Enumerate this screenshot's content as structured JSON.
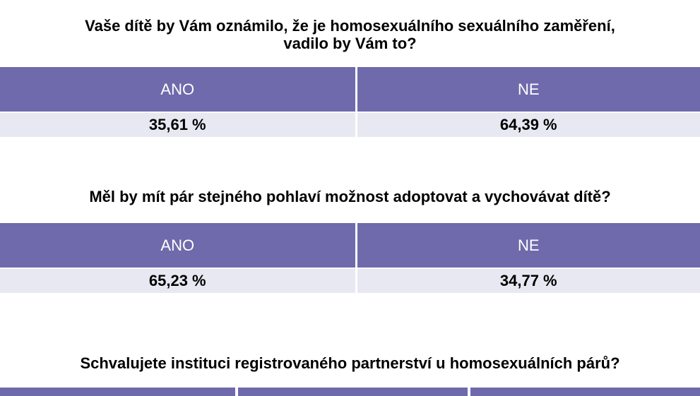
{
  "questions": [
    {
      "title_line1": "Vaše dítě by Vám oznámilo, že je homosexuálního sexuálního zaměření,",
      "title_line2": "vadilo by Vám to?",
      "answers": [
        {
          "label": "ANO",
          "value": "35,61 %"
        },
        {
          "label": "NE",
          "value": "64,39 %"
        }
      ]
    },
    {
      "title": "Měl by mít pár stejného pohlaví možnost adoptovat a vychovávat dítě?",
      "answers": [
        {
          "label": "ANO",
          "value": "65,23 %"
        },
        {
          "label": "NE",
          "value": "34,77 %"
        }
      ]
    },
    {
      "title": "Schvalujete instituci registrovaného partnerství u homosexuálních párů?"
    }
  ],
  "colors": {
    "header_bg": "#6f6aab",
    "header_text": "#ffffff",
    "value_bg": "#e8e8f3",
    "value_text": "#000000"
  }
}
